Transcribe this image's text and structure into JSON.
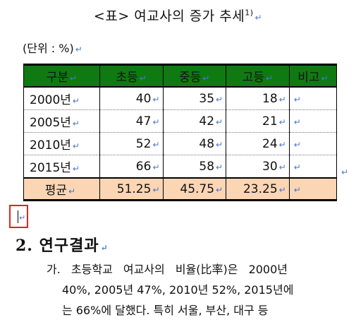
{
  "title": {
    "text": "<표> 여교사의 증가 추세",
    "footnote": "1)"
  },
  "unit": "(단위 : %)",
  "para_mark": "↵",
  "table": {
    "headers": [
      "구분",
      "초등",
      "중등",
      "고등",
      "비고"
    ],
    "rows": [
      {
        "year": "2000년",
        "values": [
          "40",
          "35",
          "18"
        ],
        "note": ""
      },
      {
        "year": "2005년",
        "values": [
          "47",
          "42",
          "21"
        ],
        "note": ""
      },
      {
        "year": "2010년",
        "values": [
          "52",
          "48",
          "24"
        ],
        "note": ""
      },
      {
        "year": "2015년",
        "values": [
          "66",
          "58",
          "30"
        ],
        "note": ""
      }
    ],
    "average": {
      "label": "평균",
      "values": [
        "51.25",
        "45.75",
        "23.25"
      ],
      "note": ""
    }
  },
  "section": {
    "heading": "2. 연구결과",
    "paragraph": {
      "bullet": "가.",
      "lines": [
        "초등학교 여교사의 비율(比率)은 2000년",
        "40%, 2005년 47%, 2010년 52%, 2015년에",
        "는 66%에 달했다. 특히 서울, 부산, 대구 등"
      ]
    }
  },
  "colors": {
    "header_bg": "#0f7a12",
    "average_bg": "#fcd5b4",
    "highlight_box": "#e0241b",
    "mark": "#4a78c8"
  }
}
